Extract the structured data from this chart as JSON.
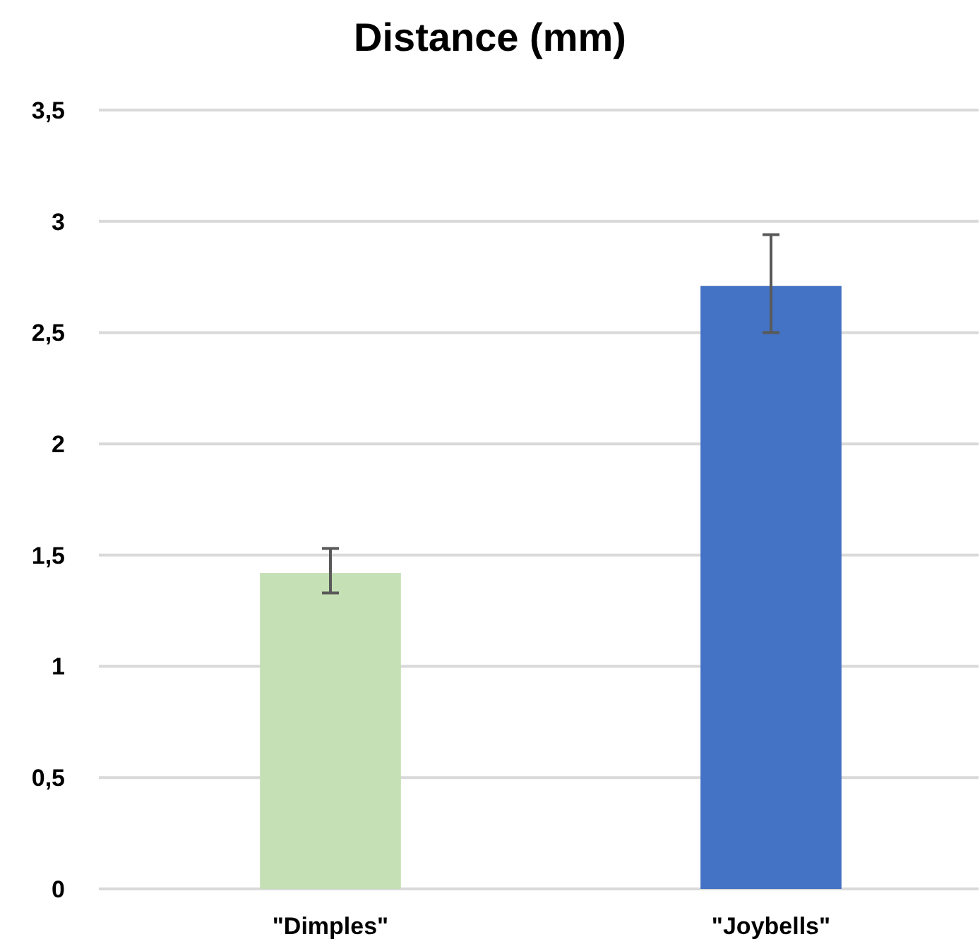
{
  "chart_data": {
    "type": "bar",
    "title": "Distance (mm)",
    "categories": [
      "\"Dimples\"",
      "\"Joybells\""
    ],
    "values": [
      1.42,
      2.71
    ],
    "colors": [
      "#c5e0b4",
      "#4472c4"
    ],
    "errors": [
      [
        1.33,
        1.53
      ],
      [
        2.5,
        2.94
      ]
    ],
    "ylim": [
      0,
      3.5
    ],
    "yticks": [
      0,
      {
        "value": 0.5,
        "label": "0,5"
      },
      1,
      {
        "value": 1.5,
        "label": "1,5"
      },
      2,
      {
        "value": 2.5,
        "label": "2,5"
      },
      3,
      {
        "value": 3.5,
        "label": "3,5"
      }
    ],
    "grid": "y"
  }
}
